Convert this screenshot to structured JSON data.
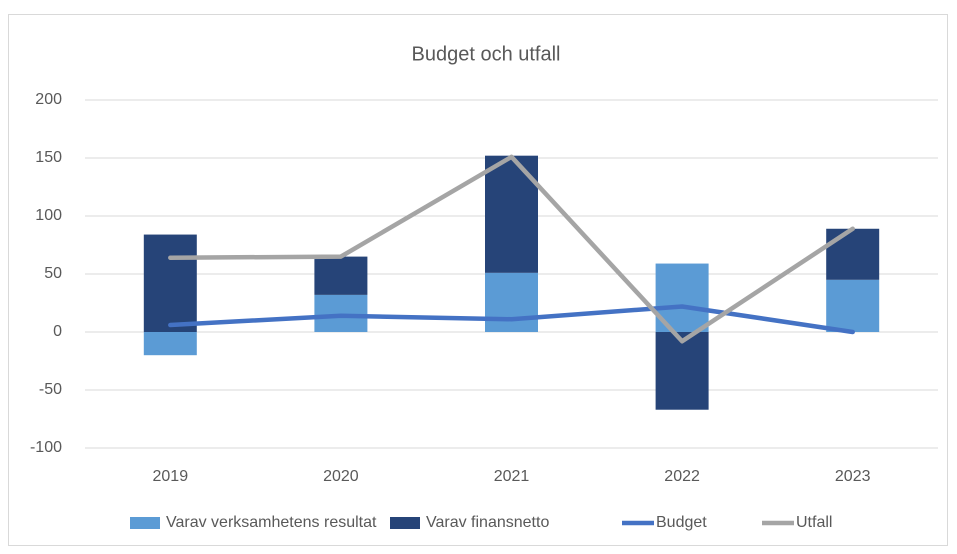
{
  "chart_data": {
    "type": "bar",
    "title": "Budget och utfall",
    "categories": [
      "2019",
      "2020",
      "2021",
      "2022",
      "2023"
    ],
    "series": [
      {
        "name": "Varav verksamhetens resultat",
        "type": "bar",
        "color": "#5b9bd5",
        "values": [
          -20,
          32,
          51,
          59,
          45
        ]
      },
      {
        "name": "Varav finansnetto",
        "type": "bar",
        "color": "#264478",
        "values": [
          84,
          33,
          101,
          -67,
          44
        ]
      },
      {
        "name": "Budget",
        "type": "line",
        "color": "#4472c4",
        "values": [
          6,
          14,
          11,
          22,
          0
        ]
      },
      {
        "name": "Utfall",
        "type": "line",
        "color": "#a5a5a5",
        "values": [
          64,
          65,
          151,
          -8,
          89
        ]
      }
    ],
    "stacked": true,
    "ylim": [
      -100,
      200
    ],
    "yticks": [
      -100,
      -50,
      0,
      50,
      100,
      150,
      200
    ],
    "grid": true,
    "legend": "bottom"
  }
}
